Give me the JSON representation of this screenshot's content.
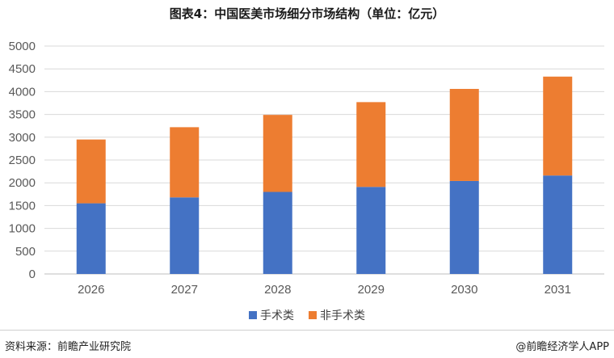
{
  "page": {
    "title": "图表4：中国医美市场细分市场结构（单位：亿元）",
    "source": "资料来源：前瞻产业研究院",
    "copyright": "@前瞻经济学人APP"
  },
  "colors": {
    "surgical": "#4472C4",
    "non_surgical": "#ED7D31",
    "grid": "#D9D9D9",
    "axis": "#BFBFBF"
  },
  "chart_data": {
    "type": "bar",
    "stacked": true,
    "categories": [
      "2026",
      "2027",
      "2028",
      "2029",
      "2030",
      "2031"
    ],
    "series": [
      {
        "name": "手术类",
        "values": [
          1550,
          1680,
          1800,
          1910,
          2040,
          2160
        ]
      },
      {
        "name": "非手术类",
        "values": [
          1400,
          1540,
          1690,
          1860,
          2020,
          2170
        ]
      }
    ],
    "yticks": [
      "0",
      "500",
      "1000",
      "1500",
      "2000",
      "2500",
      "3000",
      "3500",
      "4000",
      "4500",
      "5000"
    ],
    "ylim": [
      0,
      5000
    ],
    "grid": true,
    "legend_position": "bottom"
  }
}
